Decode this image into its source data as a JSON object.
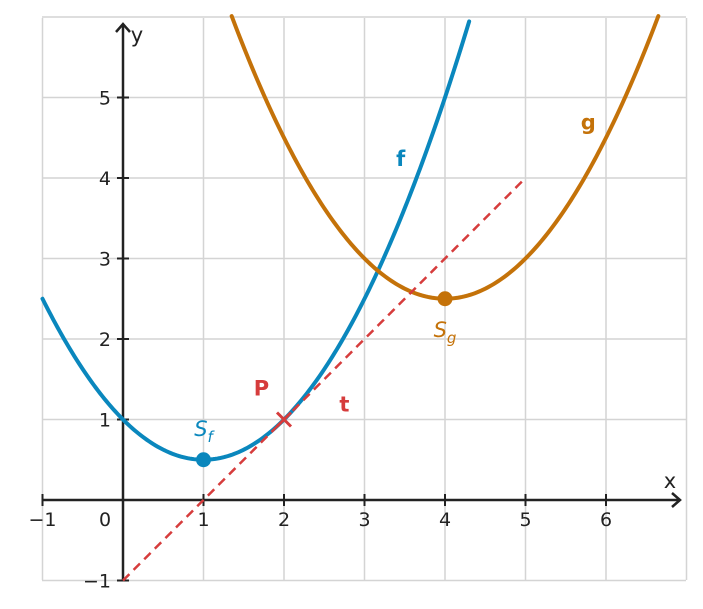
{
  "chart_data": {
    "type": "line",
    "xlabel": "x",
    "ylabel": "y",
    "xlim": [
      -1,
      7
    ],
    "ylim": [
      -1,
      6
    ],
    "grid": true,
    "x_ticks": [
      -1,
      0,
      1,
      2,
      3,
      4,
      5,
      6
    ],
    "y_ticks": [
      -1,
      1,
      2,
      3,
      4,
      5
    ],
    "x_tick_labels": [
      "−1",
      "0",
      "1",
      "2",
      "3",
      "4",
      "5",
      "6"
    ],
    "y_tick_labels": [
      "−1",
      "1",
      "2",
      "3",
      "4",
      "5"
    ],
    "series": [
      {
        "name": "f",
        "formula": "0.5*(x-1)^2 + 0.5",
        "color": "#0a87bd",
        "x": [
          -1,
          -0.5,
          0,
          0.5,
          1,
          1.5,
          2,
          2.5,
          3,
          3.5,
          4,
          4.3
        ],
        "y": [
          2.5,
          1.625,
          1,
          0.625,
          0.5,
          0.625,
          1,
          1.625,
          2.5,
          3.625,
          5,
          5.945
        ],
        "vertex": {
          "label": "S",
          "subscript": "f",
          "x": 1,
          "y": 0.5
        }
      },
      {
        "name": "g",
        "formula": "0.5*(x-4)^2 + 2.5",
        "color": "#c47209",
        "x": [
          1.35,
          1.5,
          2,
          2.5,
          3,
          3.5,
          4,
          4.5,
          5,
          5.5,
          6,
          6.5,
          6.65
        ],
        "y": [
          6.01,
          5.625,
          4.5,
          3.625,
          3,
          2.625,
          2.5,
          2.625,
          3,
          3.625,
          4.5,
          5.625,
          6.01
        ],
        "vertex": {
          "label": "S",
          "subscript": "g",
          "x": 4,
          "y": 2.5
        }
      },
      {
        "name": "t",
        "formula": "x - 1",
        "color": "#d63c3c",
        "style": "dashed",
        "x": [
          0,
          5
        ],
        "y": [
          -1,
          4
        ]
      }
    ],
    "points": [
      {
        "label": "P",
        "x": 2,
        "y": 1,
        "color": "#d63c3c",
        "marker": "cross"
      }
    ],
    "annotations": [
      {
        "text": "f",
        "x": 3.45,
        "y": 4.15,
        "color": "#0a87bd"
      },
      {
        "text": "g",
        "x": 5.78,
        "y": 4.6,
        "color": "#c47209"
      },
      {
        "text": "t",
        "x": 2.75,
        "y": 1.1,
        "color": "#d63c3c"
      },
      {
        "text": "P",
        "x": 1.72,
        "y": 1.3,
        "color": "#d63c3c"
      }
    ]
  }
}
